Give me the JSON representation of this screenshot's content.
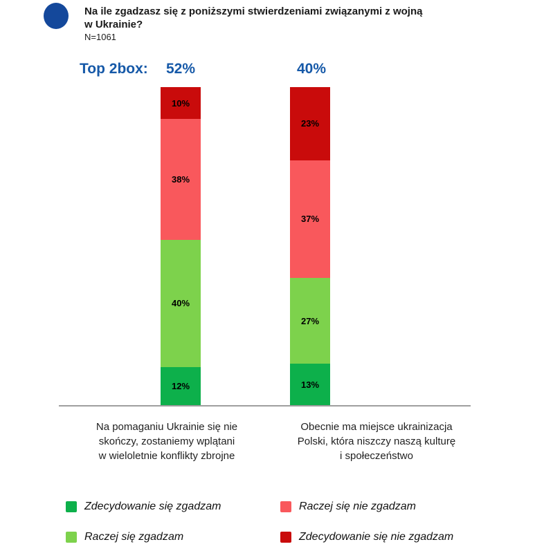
{
  "header": {
    "title": "Na ile zgadzasz się z poniższymi stwierdzeniami związanymi z wojną\nw Ukrainie?",
    "sample_size": "N=1061"
  },
  "colors": {
    "bullet_blue": "#14489B",
    "top2box_blue": "#1659A8",
    "axis_gray": "#9E9E9E",
    "strongly_agree_green": "#0DB04B",
    "rather_agree_green": "#7DD24C",
    "rather_disagree_red": "#F9585C",
    "strongly_disagree_red": "#C90B0B"
  },
  "chart_data": {
    "type": "bar",
    "stacked": true,
    "percent": true,
    "grid": false,
    "ylim": [
      0,
      100
    ],
    "title": "Na ile zgadzasz się z poniższymi stwierdzeniami związanymi z wojną w Ukrainie?",
    "categories": [
      "Na pomaganiu Ukrainie się nie\nskończy, zostaniemy wplątani\nw wieloletnie konflikty zbrojne",
      "Obecnie ma miejsce ukrainizacja\nPolski, która niszczy naszą kulturę\ni społeczeństwo"
    ],
    "series": [
      {
        "name": "Zdecydowanie się zgadzam",
        "color": "#0DB04B",
        "values": [
          12,
          13
        ]
      },
      {
        "name": "Raczej się zgadzam",
        "color": "#7DD24C",
        "values": [
          40,
          27
        ]
      },
      {
        "name": "Raczej się nie zgadzam",
        "color": "#F9585C",
        "values": [
          38,
          37
        ]
      },
      {
        "name": "Zdecydowanie się nie zgadzam",
        "color": "#C90B0B",
        "values": [
          10,
          23
        ]
      }
    ],
    "legend_order": [
      0,
      2,
      1,
      3
    ],
    "legend_position": "bottom",
    "top2box": {
      "label": "Top 2box:",
      "values": [
        "52%",
        "40%"
      ]
    }
  }
}
